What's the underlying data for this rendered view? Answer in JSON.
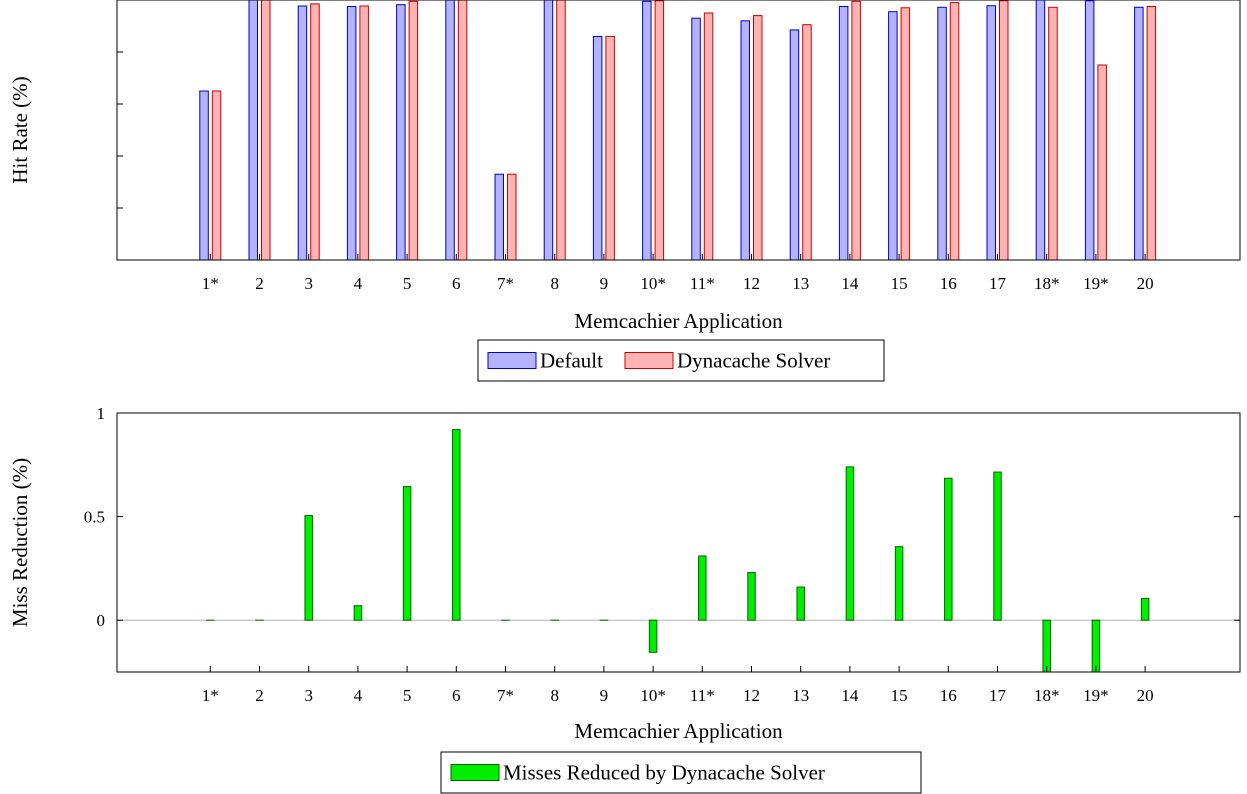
{
  "chart_data": [
    {
      "type": "bar",
      "title": "",
      "xlabel": "Memcachier Application",
      "ylabel": "Hit Rate (%)",
      "categories": [
        "1*",
        "2",
        "3",
        "4",
        "5",
        "6",
        "7*",
        "8",
        "9",
        "10*",
        "11*",
        "12",
        "13",
        "14",
        "15",
        "16",
        "17",
        "18*",
        "19*",
        "20"
      ],
      "ylim": [
        0,
        1
      ],
      "y_tick_labels_shown": false,
      "legend_position": "bottom-center",
      "series": [
        {
          "name": "Default",
          "color": "#b3b3ff",
          "stroke": "#0000cc",
          "values": [
            0.65,
            1.0,
            0.977,
            0.975,
            0.982,
            1.0,
            0.33,
            1.0,
            0.86,
            0.995,
            0.93,
            0.92,
            0.885,
            0.975,
            0.955,
            0.972,
            0.978,
            1.0,
            0.997,
            0.972
          ]
        },
        {
          "name": "Dynacache Solver",
          "color": "#ffb3b3",
          "stroke": "#cc0000",
          "values": [
            0.65,
            1.0,
            0.985,
            0.977,
            0.995,
            1.0,
            0.33,
            1.0,
            0.86,
            0.997,
            0.95,
            0.94,
            0.905,
            0.995,
            0.97,
            0.99,
            0.997,
            0.972,
            0.75,
            0.975
          ]
        }
      ]
    },
    {
      "type": "bar",
      "title": "",
      "xlabel": "Memcachier Application",
      "ylabel": "Miss Reduction (%)",
      "categories": [
        "1*",
        "2",
        "3",
        "4",
        "5",
        "6",
        "7*",
        "8",
        "9",
        "10*",
        "11*",
        "12",
        "13",
        "14",
        "15",
        "16",
        "17",
        "18*",
        "19*",
        "20"
      ],
      "ylim": [
        -0.25,
        1
      ],
      "yticks": [
        0,
        0.5,
        1
      ],
      "ytick_labels": [
        "0",
        "0.5",
        "1"
      ],
      "legend_position": "bottom-center",
      "series": [
        {
          "name": "Misses Reduced by Dynacache Solver",
          "color": "#00ee00",
          "stroke": "#006600",
          "values": [
            0,
            0,
            0.505,
            0.07,
            0.645,
            0.92,
            0,
            0,
            0,
            -0.155,
            0.31,
            0.23,
            0.16,
            0.74,
            0.355,
            0.685,
            0.715,
            -0.3,
            -0.3,
            0.105
          ]
        }
      ]
    }
  ]
}
